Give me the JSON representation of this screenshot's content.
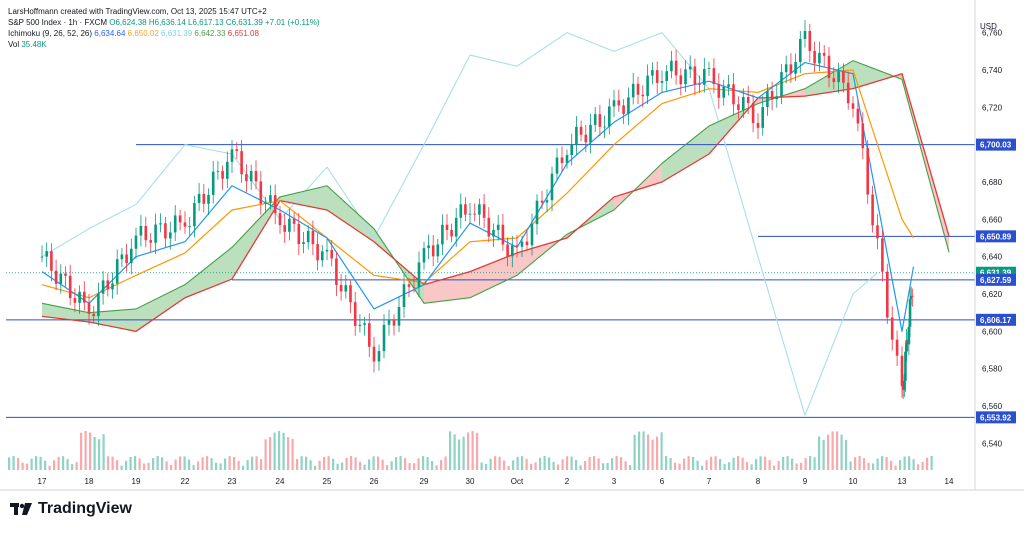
{
  "header": {
    "created_by": "LarsHoffmann created with TradingView.com, Oct 13, 2025 15:47 UTC+2",
    "symbol_line": {
      "name": "S&P 500 Index · 1h · FXCM",
      "open": "O6,624.38",
      "high": "H6,636.14",
      "low": "L6,617.13",
      "close": "C6,631.39",
      "change": "+7.01 (+0.11%)"
    },
    "ichimoku_line": {
      "name": "Ichimoku (9, 26, 52, 26)",
      "conversion": "6,634.64",
      "base": "6,650.02",
      "lagging": "6,631.39",
      "lead_a": "6,642.33",
      "lead_b": "6,651.08"
    },
    "vol_line": {
      "name": "Vol",
      "value": "35.48K"
    }
  },
  "currency": "USD",
  "footer": {
    "brand": "TradingView"
  },
  "colors": {
    "up": "#089981",
    "down": "#f23645",
    "conversion": "#2196f3",
    "base": "#ff9800",
    "lagging": "#a7dfea",
    "lead_a": "#43a047",
    "lead_b": "#e53935",
    "cloud_bull": "#a5d6a7",
    "cloud_bear": "#f8b4b4",
    "hline": "#2a4fcf"
  },
  "chart_data": {
    "type": "line",
    "title": "S&P 500 Index · 1h · FXCM",
    "ylabel": "USD",
    "ylim": [
      6530,
      6770
    ],
    "y_ticks": [
      6540,
      6560,
      6580,
      6600,
      6620,
      6640,
      6660,
      6680,
      6700,
      6720,
      6740,
      6760
    ],
    "x_ticks": [
      "17",
      "18",
      "19",
      "22",
      "23",
      "24",
      "25",
      "26",
      "29",
      "30",
      "Oct",
      "2",
      "3",
      "6",
      "7",
      "8",
      "9",
      "10",
      "13",
      "14"
    ],
    "price_labels": [
      "6,700.03",
      "6,650.89",
      "6,631.39",
      "6,627.59",
      "6,606.17",
      "6,553.92"
    ],
    "horizontal_levels": [
      {
        "value": 6700.03,
        "from": "19"
      },
      {
        "value": 6650.89,
        "from": "8"
      },
      {
        "value": 6627.59,
        "from": "23"
      },
      {
        "value": 6606.17,
        "from": "17"
      },
      {
        "value": 6553.92,
        "from": "17"
      }
    ],
    "series": [
      {
        "name": "Close",
        "points": [
          [
            "17",
            6640
          ],
          [
            "18",
            6610
          ],
          [
            "19",
            6650
          ],
          [
            "22",
            6658
          ],
          [
            "23",
            6695
          ],
          [
            "24",
            6660
          ],
          [
            "25",
            6640
          ],
          [
            "26",
            6588
          ],
          [
            "29",
            6640
          ],
          [
            "30",
            6668
          ],
          [
            "Oct",
            6640
          ],
          [
            "2",
            6700
          ],
          [
            "3",
            6718
          ],
          [
            "6",
            6740
          ],
          [
            "7",
            6735
          ],
          [
            "8",
            6715
          ],
          [
            "9",
            6755
          ],
          [
            "10",
            6725
          ],
          [
            "13",
            6565
          ],
          [
            "13.5",
            6631.39
          ]
        ]
      },
      {
        "name": "Ichimoku Conversion",
        "points": [
          [
            "17",
            6632
          ],
          [
            "18",
            6615
          ],
          [
            "19",
            6640
          ],
          [
            "22",
            6648
          ],
          [
            "23",
            6678
          ],
          [
            "24",
            6665
          ],
          [
            "25",
            6650
          ],
          [
            "26",
            6612
          ],
          [
            "29",
            6625
          ],
          [
            "30",
            6658
          ],
          [
            "Oct",
            6645
          ],
          [
            "2",
            6690
          ],
          [
            "3",
            6712
          ],
          [
            "6",
            6728
          ],
          [
            "7",
            6734
          ],
          [
            "8",
            6725
          ],
          [
            "9",
            6744
          ],
          [
            "10",
            6738
          ],
          [
            "13",
            6600
          ],
          [
            "13.5",
            6634.64
          ]
        ]
      },
      {
        "name": "Ichimoku Base",
        "points": [
          [
            "17",
            6625
          ],
          [
            "18",
            6618
          ],
          [
            "19",
            6630
          ],
          [
            "22",
            6642
          ],
          [
            "23",
            6665
          ],
          [
            "24",
            6670
          ],
          [
            "25",
            6650
          ],
          [
            "26",
            6630
          ],
          [
            "29",
            6626
          ],
          [
            "30",
            6648
          ],
          [
            "Oct",
            6650
          ],
          [
            "2",
            6674
          ],
          [
            "3",
            6700
          ],
          [
            "6",
            6722
          ],
          [
            "7",
            6730
          ],
          [
            "8",
            6728
          ],
          [
            "9",
            6738
          ],
          [
            "10",
            6740
          ],
          [
            "13",
            6660
          ],
          [
            "13.5",
            6650.02
          ]
        ]
      },
      {
        "name": "Ichimoku Lead A",
        "points": [
          [
            "17",
            6615
          ],
          [
            "18",
            6610
          ],
          [
            "19",
            6612
          ],
          [
            "22",
            6625
          ],
          [
            "23",
            6645
          ],
          [
            "24",
            6672
          ],
          [
            "25",
            6678
          ],
          [
            "26",
            6655
          ],
          [
            "29",
            6615
          ],
          [
            "30",
            6618
          ],
          [
            "Oct",
            6630
          ],
          [
            "2",
            6652
          ],
          [
            "3",
            6665
          ],
          [
            "6",
            6690
          ],
          [
            "7",
            6710
          ],
          [
            "8",
            6722
          ],
          [
            "9",
            6730
          ],
          [
            "10",
            6745
          ],
          [
            "13",
            6735
          ],
          [
            "14",
            6642.33
          ]
        ]
      },
      {
        "name": "Ichimoku Lead B",
        "points": [
          [
            "17",
            6608
          ],
          [
            "18",
            6605
          ],
          [
            "19",
            6600
          ],
          [
            "22",
            6618
          ],
          [
            "23",
            6628
          ],
          [
            "24",
            6670
          ],
          [
            "25",
            6665
          ],
          [
            "26",
            6648
          ],
          [
            "29",
            6625
          ],
          [
            "30",
            6632
          ],
          [
            "Oct",
            6642
          ],
          [
            "2",
            6650
          ],
          [
            "3",
            6672
          ],
          [
            "6",
            6680
          ],
          [
            "7",
            6695
          ],
          [
            "8",
            6725
          ],
          [
            "9",
            6726
          ],
          [
            "10",
            6730
          ],
          [
            "13",
            6738
          ],
          [
            "14",
            6651.08
          ]
        ]
      },
      {
        "name": "Ichimoku Lagging",
        "points": [
          [
            "17",
            6640
          ],
          [
            "18",
            6655
          ],
          [
            "19",
            6668
          ],
          [
            "22",
            6700
          ],
          [
            "23",
            6695
          ],
          [
            "24",
            6660
          ],
          [
            "25",
            6688
          ],
          [
            "26",
            6650
          ],
          [
            "29",
            6700
          ],
          [
            "30",
            6748
          ],
          [
            "Oct",
            6742
          ],
          [
            "2",
            6760
          ],
          [
            "3",
            6750
          ],
          [
            "6",
            6760
          ],
          [
            "7",
            6730
          ],
          [
            "8",
            6640
          ],
          [
            "9",
            6555
          ],
          [
            "10",
            6620
          ],
          [
            "11",
            6631.39
          ]
        ]
      }
    ]
  }
}
